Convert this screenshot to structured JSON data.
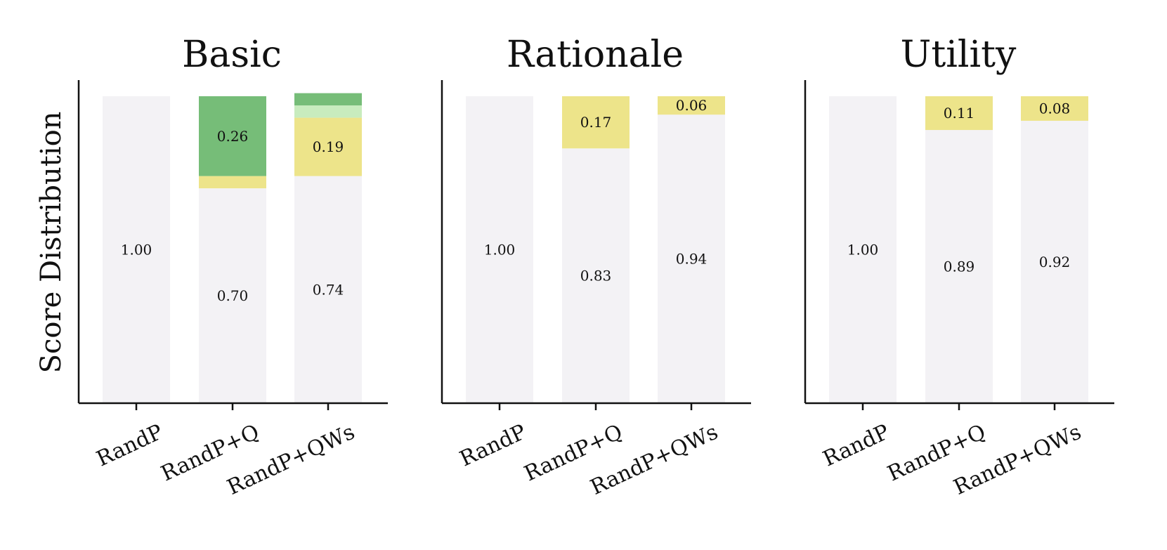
{
  "chart_data": [
    {
      "type": "bar",
      "stacked": true,
      "title": "Basic",
      "ylabel": "Score Distribution",
      "categories": [
        "RandP",
        "RandP+Q",
        "RandP+QWs"
      ],
      "series": [
        {
          "name": "score-0",
          "color": "#f3f2f5",
          "values": [
            1.0,
            0.7,
            0.74
          ]
        },
        {
          "name": "score-1",
          "color": "#ede48a",
          "values": [
            0.0,
            0.04,
            0.19
          ]
        },
        {
          "name": "score-2",
          "color": "#c8ecbe",
          "values": [
            0.0,
            0.0,
            0.04
          ]
        },
        {
          "name": "score-3",
          "color": "#76bd78",
          "values": [
            0.0,
            0.26,
            0.04
          ]
        }
      ],
      "labels": [
        {
          "category": 0,
          "series": 0,
          "text": "1.00"
        },
        {
          "category": 1,
          "series": 0,
          "text": "0.70"
        },
        {
          "category": 1,
          "series": 3,
          "text": "0.26"
        },
        {
          "category": 2,
          "series": 0,
          "text": "0.74"
        },
        {
          "category": 2,
          "series": 1,
          "text": "0.19"
        }
      ],
      "ylim": [
        0,
        1
      ]
    },
    {
      "type": "bar",
      "stacked": true,
      "title": "Rationale",
      "categories": [
        "RandP",
        "RandP+Q",
        "RandP+QWs"
      ],
      "series": [
        {
          "name": "score-0",
          "color": "#f3f2f5",
          "values": [
            1.0,
            0.83,
            0.94
          ]
        },
        {
          "name": "score-1",
          "color": "#ede48a",
          "values": [
            0.0,
            0.17,
            0.06
          ]
        }
      ],
      "labels": [
        {
          "category": 0,
          "series": 0,
          "text": "1.00"
        },
        {
          "category": 1,
          "series": 0,
          "text": "0.83"
        },
        {
          "category": 1,
          "series": 1,
          "text": "0.17"
        },
        {
          "category": 2,
          "series": 0,
          "text": "0.94"
        },
        {
          "category": 2,
          "series": 1,
          "text": "0.06"
        }
      ],
      "ylim": [
        0,
        1
      ]
    },
    {
      "type": "bar",
      "stacked": true,
      "title": "Utility",
      "categories": [
        "RandP",
        "RandP+Q",
        "RandP+QWs"
      ],
      "series": [
        {
          "name": "score-0",
          "color": "#f3f2f5",
          "values": [
            1.0,
            0.89,
            0.92
          ]
        },
        {
          "name": "score-1",
          "color": "#ede48a",
          "values": [
            0.0,
            0.11,
            0.08
          ]
        }
      ],
      "labels": [
        {
          "category": 0,
          "series": 0,
          "text": "1.00"
        },
        {
          "category": 1,
          "series": 0,
          "text": "0.89"
        },
        {
          "category": 1,
          "series": 1,
          "text": "0.11"
        },
        {
          "category": 2,
          "series": 0,
          "text": "0.92"
        },
        {
          "category": 2,
          "series": 1,
          "text": "0.08"
        }
      ],
      "ylim": [
        0,
        1
      ]
    }
  ]
}
